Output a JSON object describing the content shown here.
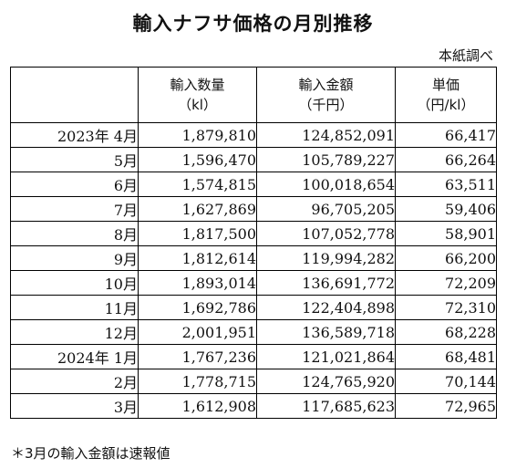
{
  "title": "輸入ナフサ価格の月別推移",
  "source": "本紙調べ",
  "table": {
    "headers": [
      {
        "line1": "",
        "line2": ""
      },
      {
        "line1": "輸入数量",
        "line2": "（kl）"
      },
      {
        "line1": "輸入金額",
        "line2": "（千円）"
      },
      {
        "line1": "単価",
        "line2": "（円/kl）"
      }
    ],
    "rows": [
      {
        "period": "2023年  4月",
        "quantity": "1,879,810",
        "amount": "124,852,091",
        "unit_price": "66,417"
      },
      {
        "period": "5月",
        "quantity": "1,596,470",
        "amount": "105,789,227",
        "unit_price": "66,264"
      },
      {
        "period": "6月",
        "quantity": "1,574,815",
        "amount": "100,018,654",
        "unit_price": "63,511"
      },
      {
        "period": "7月",
        "quantity": "1,627,869",
        "amount": "96,705,205",
        "unit_price": "59,406"
      },
      {
        "period": "8月",
        "quantity": "1,817,500",
        "amount": "107,052,778",
        "unit_price": "58,901"
      },
      {
        "period": "9月",
        "quantity": "1,812,614",
        "amount": "119,994,282",
        "unit_price": "66,200"
      },
      {
        "period": "10月",
        "quantity": "1,893,014",
        "amount": "136,691,772",
        "unit_price": "72,209"
      },
      {
        "period": "11月",
        "quantity": "1,692,786",
        "amount": "122,404,898",
        "unit_price": "72,310"
      },
      {
        "period": "12月",
        "quantity": "2,001,951",
        "amount": "136,589,718",
        "unit_price": "68,228"
      },
      {
        "period": "2024年  1月",
        "quantity": "1,767,236",
        "amount": "121,021,864",
        "unit_price": "68,481"
      },
      {
        "period": "2月",
        "quantity": "1,778,715",
        "amount": "124,765,920",
        "unit_price": "70,144"
      },
      {
        "period": "3月",
        "quantity": "1,612,908",
        "amount": "117,685,623",
        "unit_price": "72,965"
      }
    ]
  },
  "note": "＊3月の輸入金額は速報値"
}
